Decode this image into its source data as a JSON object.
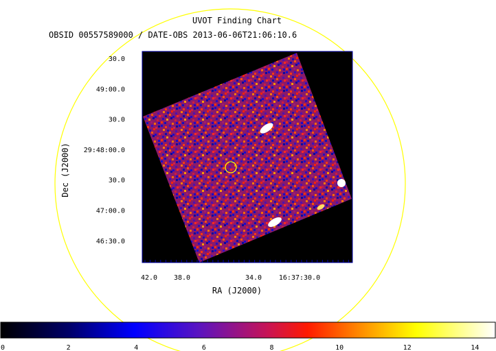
{
  "chart_data": {
    "type": "heatmap",
    "title": "UVOT Finding Chart",
    "subtitle": "OBSID 00557589000 / DATE-OBS 2013-06-06T21:06:10.6",
    "xlabel": "RA (J2000)",
    "ylabel": "Dec (J2000)",
    "x_ticks": [
      "42.0",
      "38.0",
      "34.0",
      "16:37:30.0"
    ],
    "y_ticks": [
      "30.0",
      "49:00.0",
      "30.0",
      "29:48:00.0",
      "30.0",
      "47:00.0",
      "46:30.0"
    ],
    "colorbar": {
      "ticks": [
        0,
        2,
        4,
        6,
        8,
        10,
        12,
        14
      ],
      "range": [
        0,
        14.6
      ],
      "colormap": "hot-blue"
    },
    "bright_sources": 4,
    "target_marker": "yellow circle",
    "colors": {
      "marker": "#ffff00",
      "frame": "#0000aa",
      "background": "#000000"
    }
  }
}
